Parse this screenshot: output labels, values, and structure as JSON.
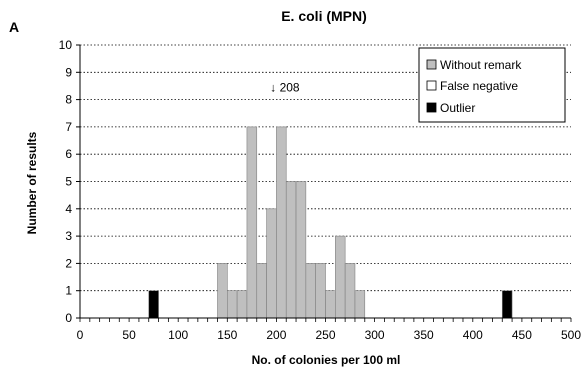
{
  "panel_label": "A",
  "chart_data": {
    "type": "bar",
    "title": "E. coli (MPN)",
    "xlabel": "No. of colonies per 100 ml",
    "ylabel": "Number of results",
    "xlim": [
      0,
      500
    ],
    "ylim": [
      0,
      10
    ],
    "bin_width": 10,
    "x_ticks": [
      0,
      50,
      100,
      150,
      200,
      250,
      300,
      350,
      400,
      450,
      500
    ],
    "y_ticks": [
      0,
      1,
      2,
      3,
      4,
      5,
      6,
      7,
      8,
      9,
      10
    ],
    "grid": "horizontal dotted",
    "legend_position": "top-right",
    "annotation": {
      "text": "↓ 208",
      "x": 208,
      "y": 8
    },
    "series": [
      {
        "name": "Without remark",
        "color": "#bfbfbf",
        "bins": [
          {
            "x": 140,
            "value": 2
          },
          {
            "x": 150,
            "value": 1
          },
          {
            "x": 160,
            "value": 1
          },
          {
            "x": 170,
            "value": 7
          },
          {
            "x": 180,
            "value": 2
          },
          {
            "x": 190,
            "value": 4
          },
          {
            "x": 200,
            "value": 7
          },
          {
            "x": 210,
            "value": 5
          },
          {
            "x": 220,
            "value": 5
          },
          {
            "x": 230,
            "value": 2
          },
          {
            "x": 240,
            "value": 2
          },
          {
            "x": 250,
            "value": 1
          },
          {
            "x": 260,
            "value": 3
          },
          {
            "x": 270,
            "value": 2
          },
          {
            "x": 280,
            "value": 1
          }
        ]
      },
      {
        "name": "False negative",
        "color": "#ffffff",
        "bins": []
      },
      {
        "name": "Outlier",
        "color": "#000000",
        "bins": [
          {
            "x": 70,
            "value": 1
          },
          {
            "x": 430,
            "value": 1
          }
        ]
      }
    ]
  }
}
